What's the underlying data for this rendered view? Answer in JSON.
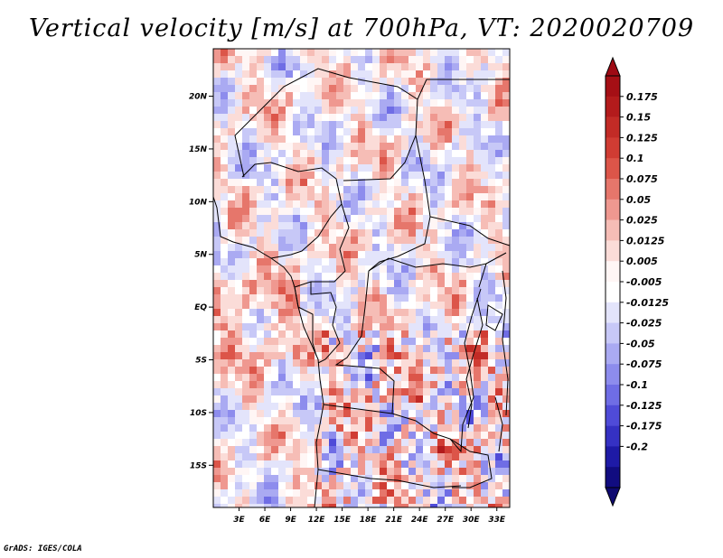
{
  "title": "Vertical velocity [m/s] at 700hPa, VT: 2020020709",
  "credit": "GrADS: IGES/COLA",
  "map": {
    "lon_range": [
      0,
      34.5
    ],
    "lat_range": [
      -19,
      24.5
    ],
    "lat_ticks": [
      {
        "value": 20,
        "label": "20N"
      },
      {
        "value": 15,
        "label": "15N"
      },
      {
        "value": 10,
        "label": "10N"
      },
      {
        "value": 5,
        "label": "5N"
      },
      {
        "value": 0,
        "label": "EQ"
      },
      {
        "value": -5,
        "label": "5S"
      },
      {
        "value": -10,
        "label": "10S"
      },
      {
        "value": -15,
        "label": "15S"
      }
    ],
    "lon_ticks": [
      {
        "value": 3,
        "label": "3E"
      },
      {
        "value": 6,
        "label": "6E"
      },
      {
        "value": 9,
        "label": "9E"
      },
      {
        "value": 12,
        "label": "12E"
      },
      {
        "value": 15,
        "label": "15E"
      },
      {
        "value": 18,
        "label": "18E"
      },
      {
        "value": 21,
        "label": "21E"
      },
      {
        "value": 24,
        "label": "24E"
      },
      {
        "value": 27,
        "label": "27E"
      },
      {
        "value": 30,
        "label": "30E"
      },
      {
        "value": 33,
        "label": "33E"
      }
    ]
  },
  "colorbar": {
    "labels": [
      "0.175",
      "0.15",
      "0.125",
      "0.1",
      "0.075",
      "0.05",
      "0.025",
      "0.0125",
      "0.005",
      "-0.005",
      "-0.0125",
      "-0.025",
      "-0.05",
      "-0.075",
      "-0.1",
      "-0.125",
      "-0.175",
      "-0.2"
    ],
    "colors": [
      "#a50f15",
      "#b31b1c",
      "#c22b26",
      "#d03c33",
      "#dc5549",
      "#e6766b",
      "#ef9890",
      "#f6bdb6",
      "#fbdcd8",
      "#fff6f5",
      "#ffffff",
      "#e3e4fb",
      "#c7c8f7",
      "#aaaaf2",
      "#8d8ced",
      "#6f6de5",
      "#4f4bd8",
      "#3531c3",
      "#1e1aa6",
      "#110c80"
    ],
    "top_color": "#9e0a14",
    "bottom_color": "#0e0970"
  }
}
